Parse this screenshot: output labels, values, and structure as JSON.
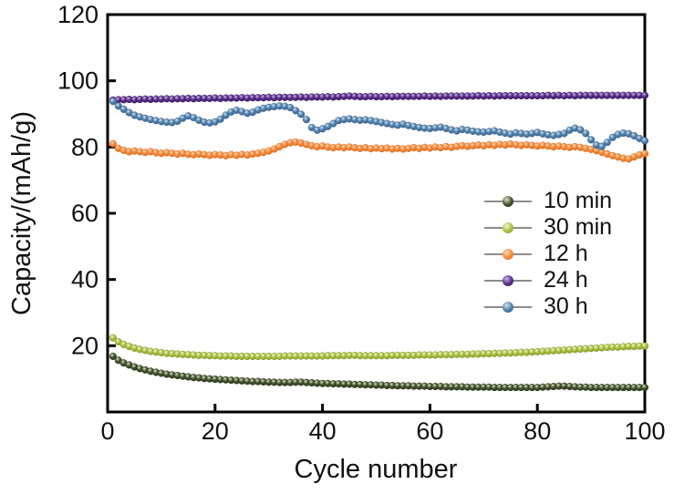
{
  "chart_data": {
    "type": "line",
    "title": "",
    "xlabel": "Cycle number",
    "ylabel": "Capacity/(mAh/g)",
    "xlim": [
      0,
      100
    ],
    "ylim": [
      0,
      120
    ],
    "xticks": [
      0,
      20,
      40,
      60,
      80,
      100
    ],
    "yticks": [
      20,
      40,
      60,
      80,
      100,
      120
    ],
    "grid": false,
    "legend_position": "middle-right",
    "axis_color": "#000000",
    "legend_line_color": "#8c8c8c",
    "x": [
      1,
      2,
      3,
      4,
      5,
      6,
      7,
      8,
      9,
      10,
      11,
      12,
      13,
      14,
      15,
      16,
      17,
      18,
      19,
      20,
      21,
      22,
      23,
      24,
      25,
      26,
      27,
      28,
      29,
      30,
      31,
      32,
      33,
      34,
      35,
      36,
      37,
      38,
      39,
      40,
      41,
      42,
      43,
      44,
      45,
      46,
      47,
      48,
      49,
      50,
      51,
      52,
      53,
      54,
      55,
      56,
      57,
      58,
      59,
      60,
      61,
      62,
      63,
      64,
      65,
      66,
      67,
      68,
      69,
      70,
      71,
      72,
      73,
      74,
      75,
      76,
      77,
      78,
      79,
      80,
      81,
      82,
      83,
      84,
      85,
      86,
      87,
      88,
      89,
      90,
      91,
      92,
      93,
      94,
      95,
      96,
      97,
      98,
      99,
      100
    ],
    "series": [
      {
        "name": "10 min",
        "color": "#41502b",
        "edge": "#2c381c",
        "highlight": "#d9e0c3",
        "values": [
          16.8,
          15.6,
          14.8,
          14.2,
          13.6,
          13.1,
          12.7,
          12.3,
          12.0,
          11.7,
          11.4,
          11.2,
          11.0,
          10.8,
          10.6,
          10.4,
          10.3,
          10.1,
          10.0,
          9.9,
          9.8,
          9.7,
          9.6,
          9.5,
          9.4,
          9.3,
          9.2,
          9.2,
          9.1,
          9.0,
          9.0,
          8.9,
          8.9,
          8.9,
          9.0,
          9.0,
          8.9,
          8.8,
          8.7,
          8.6,
          8.6,
          8.5,
          8.5,
          8.4,
          8.4,
          8.3,
          8.3,
          8.2,
          8.2,
          8.1,
          8.1,
          8.0,
          8.0,
          7.9,
          7.9,
          7.9,
          7.8,
          7.8,
          7.8,
          7.7,
          7.7,
          7.7,
          7.6,
          7.6,
          7.6,
          7.6,
          7.5,
          7.5,
          7.5,
          7.5,
          7.5,
          7.4,
          7.4,
          7.4,
          7.4,
          7.4,
          7.4,
          7.4,
          7.4,
          7.4,
          7.5,
          7.6,
          7.7,
          7.8,
          7.8,
          7.7,
          7.6,
          7.5,
          7.5,
          7.4,
          7.4,
          7.4,
          7.4,
          7.4,
          7.4,
          7.4,
          7.4,
          7.4,
          7.4,
          7.4
        ]
      },
      {
        "name": "30 min",
        "color": "#a9c23f",
        "edge": "#84982c",
        "highlight": "#eff4d0",
        "values": [
          22.4,
          21.2,
          20.4,
          19.8,
          19.3,
          18.9,
          18.6,
          18.3,
          18.1,
          17.9,
          17.7,
          17.6,
          17.5,
          17.4,
          17.3,
          17.2,
          17.1,
          17.1,
          17.0,
          17.0,
          16.9,
          16.9,
          16.9,
          16.8,
          16.8,
          16.8,
          16.8,
          16.8,
          16.8,
          16.8,
          16.8,
          16.8,
          16.9,
          16.9,
          16.9,
          16.9,
          16.9,
          16.9,
          16.9,
          16.9,
          17.0,
          17.0,
          17.0,
          17.0,
          17.1,
          17.1,
          17.0,
          17.0,
          17.0,
          17.0,
          17.0,
          17.0,
          17.1,
          17.1,
          17.1,
          17.1,
          17.1,
          17.2,
          17.2,
          17.2,
          17.2,
          17.3,
          17.3,
          17.3,
          17.4,
          17.4,
          17.4,
          17.5,
          17.5,
          17.6,
          17.6,
          17.7,
          17.7,
          17.8,
          17.8,
          17.9,
          18.0,
          18.0,
          18.1,
          18.2,
          18.3,
          18.4,
          18.5,
          18.6,
          18.7,
          18.8,
          18.9,
          19.0,
          19.1,
          19.2,
          19.3,
          19.4,
          19.5,
          19.6,
          19.6,
          19.7,
          19.8,
          19.8,
          19.9,
          19.9
        ]
      },
      {
        "name": "12 h",
        "color": "#f68a3d",
        "edge": "#d66c1e",
        "highlight": "#fcd9b5",
        "values": [
          81.0,
          79.6,
          79.0,
          78.6,
          78.8,
          78.6,
          78.4,
          78.6,
          78.3,
          78.1,
          78.3,
          78.1,
          77.9,
          78.1,
          77.8,
          77.7,
          77.9,
          77.7,
          77.5,
          77.7,
          77.6,
          77.4,
          77.7,
          77.5,
          77.8,
          77.6,
          77.9,
          78.1,
          78.4,
          78.8,
          79.4,
          80.1,
          80.8,
          81.3,
          81.5,
          81.2,
          80.8,
          80.4,
          80.1,
          80.3,
          80.0,
          79.8,
          80.0,
          79.8,
          80.0,
          79.8,
          79.6,
          79.8,
          79.5,
          79.7,
          79.5,
          79.7,
          79.4,
          79.6,
          79.4,
          79.6,
          79.8,
          79.6,
          79.9,
          79.7,
          80.0,
          79.8,
          80.1,
          79.9,
          80.2,
          80.4,
          80.2,
          80.4,
          80.6,
          80.4,
          80.7,
          80.5,
          80.8,
          80.6,
          80.9,
          80.7,
          80.5,
          80.7,
          80.5,
          80.3,
          80.5,
          80.3,
          80.1,
          80.3,
          80.1,
          79.9,
          80.1,
          79.9,
          79.6,
          79.3,
          78.9,
          78.4,
          77.9,
          77.4,
          77.0,
          76.6,
          76.4,
          77.0,
          77.6,
          78.0
        ]
      },
      {
        "name": "24 h",
        "color": "#572c87",
        "edge": "#3c1c63",
        "highlight": "#cab5e5",
        "values": [
          94.2,
          94.3,
          94.3,
          94.4,
          94.3,
          94.4,
          94.5,
          94.4,
          94.5,
          94.5,
          94.6,
          94.5,
          94.6,
          94.6,
          94.7,
          94.6,
          94.7,
          94.7,
          94.7,
          94.8,
          94.7,
          94.8,
          94.8,
          94.8,
          94.9,
          94.8,
          94.9,
          94.9,
          94.9,
          95.0,
          94.9,
          95.0,
          95.0,
          95.0,
          95.0,
          95.1,
          95.0,
          95.1,
          95.1,
          95.1,
          95.2,
          95.1,
          95.2,
          95.3,
          95.4,
          95.3,
          95.2,
          95.2,
          95.3,
          95.2,
          95.2,
          95.3,
          95.2,
          95.3,
          95.3,
          95.3,
          95.3,
          95.3,
          95.4,
          95.3,
          95.4,
          95.3,
          95.4,
          95.4,
          95.4,
          95.4,
          95.4,
          95.4,
          95.5,
          95.4,
          95.5,
          95.4,
          95.5,
          95.5,
          95.5,
          95.5,
          95.5,
          95.5,
          95.5,
          95.5,
          95.5,
          95.6,
          95.5,
          95.6,
          95.5,
          95.6,
          95.5,
          95.6,
          95.6,
          95.6,
          95.6,
          95.6,
          95.6,
          95.6,
          95.6,
          95.6,
          95.6,
          95.6,
          95.6,
          95.6
        ]
      },
      {
        "name": "30 h",
        "color": "#5081ad",
        "edge": "#3a638c",
        "highlight": "#d0e2ef",
        "dashed_gap_after_x": 37,
        "values": [
          93.8,
          92.4,
          91.4,
          90.4,
          89.6,
          89.1,
          88.7,
          88.3,
          88.0,
          87.7,
          87.5,
          87.4,
          87.8,
          88.7,
          89.4,
          88.9,
          88.1,
          87.5,
          87.3,
          87.6,
          88.4,
          89.6,
          90.6,
          91.1,
          90.7,
          90.2,
          90.5,
          91.2,
          91.7,
          92.0,
          92.2,
          92.4,
          92.3,
          91.9,
          91.0,
          89.9,
          88.3,
          85.9,
          85.1,
          85.5,
          86.2,
          87.1,
          88.0,
          88.3,
          88.5,
          88.3,
          88.1,
          88.2,
          88.0,
          87.7,
          87.4,
          87.1,
          86.8,
          86.6,
          86.9,
          86.5,
          86.2,
          85.9,
          85.7,
          85.6,
          85.8,
          86.0,
          85.6,
          85.2,
          84.9,
          85.3,
          85.1,
          84.8,
          84.6,
          84.5,
          84.7,
          84.9,
          84.5,
          84.2,
          83.9,
          84.3,
          84.1,
          83.9,
          84.1,
          84.4,
          84.0,
          83.7,
          83.5,
          83.8,
          84.1,
          85.1,
          85.7,
          85.2,
          84.1,
          82.2,
          80.6,
          80.2,
          81.4,
          82.9,
          83.8,
          84.2,
          84.0,
          83.4,
          82.6,
          81.9
        ]
      }
    ]
  }
}
